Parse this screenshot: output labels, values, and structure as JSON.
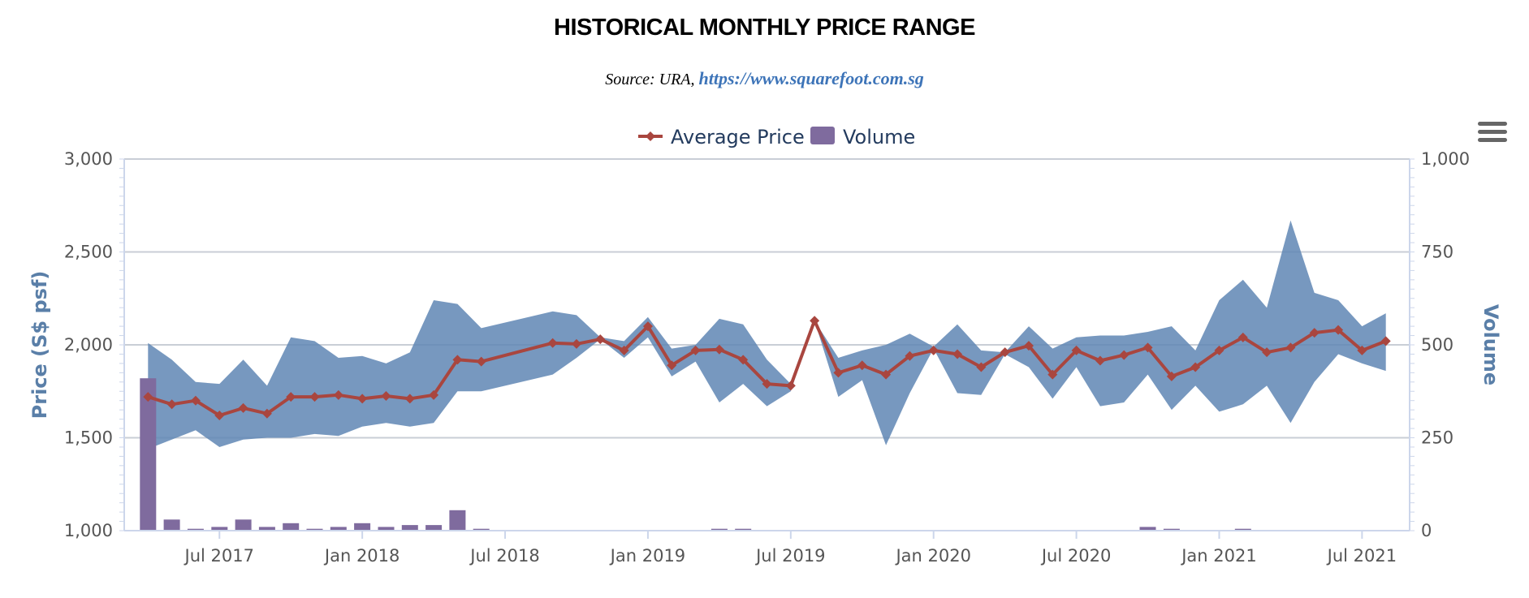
{
  "header": {
    "title": "HISTORICAL MONTHLY PRICE RANGE",
    "source_prefix": "Source: URA,",
    "source_link": "https://www.squarefoot.com.sg"
  },
  "colors": {
    "band": "#5f86b4",
    "avg_line": "#a9463f",
    "volume": "#7f6b9e",
    "grid": "#c9ced6",
    "axis_title": "#5a7fa8"
  },
  "menu": {
    "icon": "hamburger-menu-icon"
  },
  "chart_data": {
    "type": "line",
    "xlabel": "",
    "ylabel": "Price (S$ psf)",
    "y2label": "Volume",
    "ylim": [
      1000,
      3000
    ],
    "y2lim": [
      0,
      1000
    ],
    "yticks": [
      "1,000",
      "1,500",
      "2,000",
      "2,500",
      "3,000"
    ],
    "y2ticks": [
      "0",
      "250",
      "500",
      "750",
      "1,000"
    ],
    "grid": true,
    "legend_position": "top-center",
    "x_range": [
      "2017-03",
      "2021-09"
    ],
    "xticks": [
      {
        "label": "Jul 2017",
        "date": "2017-07"
      },
      {
        "label": "Jan 2018",
        "date": "2018-01"
      },
      {
        "label": "Jul 2018",
        "date": "2018-07"
      },
      {
        "label": "Jan 2019",
        "date": "2019-01"
      },
      {
        "label": "Jul 2019",
        "date": "2019-07"
      },
      {
        "label": "Jan 2020",
        "date": "2020-01"
      },
      {
        "label": "Jul 2020",
        "date": "2020-07"
      },
      {
        "label": "Jan 2021",
        "date": "2021-01"
      },
      {
        "label": "Jul 2021",
        "date": "2021-07"
      }
    ],
    "series": [
      {
        "name": "Average Price",
        "type": "line",
        "points": [
          {
            "x": "2017-04",
            "y": 1720
          },
          {
            "x": "2017-05",
            "y": 1680
          },
          {
            "x": "2017-06",
            "y": 1700
          },
          {
            "x": "2017-07",
            "y": 1620
          },
          {
            "x": "2017-08",
            "y": 1660
          },
          {
            "x": "2017-09",
            "y": 1630
          },
          {
            "x": "2017-10",
            "y": 1720
          },
          {
            "x": "2017-11",
            "y": 1720
          },
          {
            "x": "2017-12",
            "y": 1730
          },
          {
            "x": "2018-01",
            "y": 1710
          },
          {
            "x": "2018-02",
            "y": 1725
          },
          {
            "x": "2018-03",
            "y": 1710
          },
          {
            "x": "2018-04",
            "y": 1730
          },
          {
            "x": "2018-05",
            "y": 1920
          },
          {
            "x": "2018-06",
            "y": 1910
          },
          {
            "x": "2018-09",
            "y": 2010
          },
          {
            "x": "2018-10",
            "y": 2005
          },
          {
            "x": "2018-11",
            "y": 2030
          },
          {
            "x": "2018-12",
            "y": 1970
          },
          {
            "x": "2019-01",
            "y": 2100
          },
          {
            "x": "2019-02",
            "y": 1890
          },
          {
            "x": "2019-03",
            "y": 1970
          },
          {
            "x": "2019-04",
            "y": 1975
          },
          {
            "x": "2019-05",
            "y": 1920
          },
          {
            "x": "2019-06",
            "y": 1790
          },
          {
            "x": "2019-07",
            "y": 1780
          },
          {
            "x": "2019-08",
            "y": 2130
          },
          {
            "x": "2019-09",
            "y": 1850
          },
          {
            "x": "2019-10",
            "y": 1890
          },
          {
            "x": "2019-11",
            "y": 1840
          },
          {
            "x": "2019-12",
            "y": 1940
          },
          {
            "x": "2020-01",
            "y": 1970
          },
          {
            "x": "2020-02",
            "y": 1950
          },
          {
            "x": "2020-03",
            "y": 1880
          },
          {
            "x": "2020-04",
            "y": 1960
          },
          {
            "x": "2020-05",
            "y": 1995
          },
          {
            "x": "2020-06",
            "y": 1840
          },
          {
            "x": "2020-07",
            "y": 1970
          },
          {
            "x": "2020-08",
            "y": 1915
          },
          {
            "x": "2020-09",
            "y": 1945
          },
          {
            "x": "2020-10",
            "y": 1985
          },
          {
            "x": "2020-11",
            "y": 1830
          },
          {
            "x": "2020-12",
            "y": 1880
          },
          {
            "x": "2021-01",
            "y": 1970
          },
          {
            "x": "2021-02",
            "y": 2040
          },
          {
            "x": "2021-03",
            "y": 1960
          },
          {
            "x": "2021-04",
            "y": 1985
          },
          {
            "x": "2021-05",
            "y": 2065
          },
          {
            "x": "2021-06",
            "y": 2080
          },
          {
            "x": "2021-07",
            "y": 1970
          },
          {
            "x": "2021-08",
            "y": 2020
          }
        ]
      },
      {
        "name": "Price Range",
        "type": "arearange",
        "points": [
          {
            "x": "2017-04",
            "low": 1440,
            "high": 2010
          },
          {
            "x": "2017-05",
            "low": 1490,
            "high": 1920
          },
          {
            "x": "2017-06",
            "low": 1540,
            "high": 1800
          },
          {
            "x": "2017-07",
            "low": 1450,
            "high": 1790
          },
          {
            "x": "2017-08",
            "low": 1490,
            "high": 1920
          },
          {
            "x": "2017-09",
            "low": 1500,
            "high": 1780
          },
          {
            "x": "2017-10",
            "low": 1500,
            "high": 2040
          },
          {
            "x": "2017-11",
            "low": 1520,
            "high": 2020
          },
          {
            "x": "2017-12",
            "low": 1510,
            "high": 1930
          },
          {
            "x": "2018-01",
            "low": 1560,
            "high": 1940
          },
          {
            "x": "2018-02",
            "low": 1580,
            "high": 1900
          },
          {
            "x": "2018-03",
            "low": 1560,
            "high": 1960
          },
          {
            "x": "2018-04",
            "low": 1580,
            "high": 2240
          },
          {
            "x": "2018-05",
            "low": 1750,
            "high": 2220
          },
          {
            "x": "2018-06",
            "low": 1750,
            "high": 2090
          },
          {
            "x": "2018-09",
            "low": 1840,
            "high": 2180
          },
          {
            "x": "2018-10",
            "low": 1930,
            "high": 2160
          },
          {
            "x": "2018-11",
            "low": 2030,
            "high": 2040
          },
          {
            "x": "2018-12",
            "low": 1930,
            "high": 2020
          },
          {
            "x": "2019-01",
            "low": 2040,
            "high": 2150
          },
          {
            "x": "2019-02",
            "low": 1830,
            "high": 1980
          },
          {
            "x": "2019-03",
            "low": 1910,
            "high": 2000
          },
          {
            "x": "2019-04",
            "low": 1690,
            "high": 2140
          },
          {
            "x": "2019-05",
            "low": 1790,
            "high": 2110
          },
          {
            "x": "2019-06",
            "low": 1670,
            "high": 1920
          },
          {
            "x": "2019-07",
            "low": 1750,
            "high": 1790
          },
          {
            "x": "2019-08",
            "low": 2130,
            "high": 2130
          },
          {
            "x": "2019-09",
            "low": 1720,
            "high": 1930
          },
          {
            "x": "2019-10",
            "low": 1810,
            "high": 1970
          },
          {
            "x": "2019-11",
            "low": 1460,
            "high": 2000
          },
          {
            "x": "2019-12",
            "low": 1740,
            "high": 2060
          },
          {
            "x": "2020-01",
            "low": 1980,
            "high": 1990
          },
          {
            "x": "2020-02",
            "low": 1740,
            "high": 2110
          },
          {
            "x": "2020-03",
            "low": 1730,
            "high": 1970
          },
          {
            "x": "2020-04",
            "low": 1950,
            "high": 1960
          },
          {
            "x": "2020-05",
            "low": 1880,
            "high": 2100
          },
          {
            "x": "2020-06",
            "low": 1710,
            "high": 1980
          },
          {
            "x": "2020-07",
            "low": 1880,
            "high": 2040
          },
          {
            "x": "2020-08",
            "low": 1670,
            "high": 2050
          },
          {
            "x": "2020-09",
            "low": 1690,
            "high": 2050
          },
          {
            "x": "2020-10",
            "low": 1840,
            "high": 2070
          },
          {
            "x": "2020-11",
            "low": 1650,
            "high": 2100
          },
          {
            "x": "2020-12",
            "low": 1780,
            "high": 1970
          },
          {
            "x": "2021-01",
            "low": 1640,
            "high": 2240
          },
          {
            "x": "2021-02",
            "low": 1680,
            "high": 2350
          },
          {
            "x": "2021-03",
            "low": 1780,
            "high": 2200
          },
          {
            "x": "2021-04",
            "low": 1580,
            "high": 2670
          },
          {
            "x": "2021-05",
            "low": 1800,
            "high": 2280
          },
          {
            "x": "2021-06",
            "low": 1950,
            "high": 2240
          },
          {
            "x": "2021-07",
            "low": 1900,
            "high": 2100
          },
          {
            "x": "2021-08",
            "low": 1860,
            "high": 2170
          }
        ]
      },
      {
        "name": "Volume",
        "type": "column",
        "axis": "right",
        "points": [
          {
            "x": "2017-04",
            "y": 410
          },
          {
            "x": "2017-05",
            "y": 30
          },
          {
            "x": "2017-06",
            "y": 5
          },
          {
            "x": "2017-07",
            "y": 10
          },
          {
            "x": "2017-08",
            "y": 30
          },
          {
            "x": "2017-09",
            "y": 10
          },
          {
            "x": "2017-10",
            "y": 20
          },
          {
            "x": "2017-11",
            "y": 5
          },
          {
            "x": "2017-12",
            "y": 10
          },
          {
            "x": "2018-01",
            "y": 20
          },
          {
            "x": "2018-02",
            "y": 10
          },
          {
            "x": "2018-03",
            "y": 15
          },
          {
            "x": "2018-04",
            "y": 15
          },
          {
            "x": "2018-05",
            "y": 55
          },
          {
            "x": "2018-06",
            "y": 5
          },
          {
            "x": "2019-04",
            "y": 5
          },
          {
            "x": "2019-05",
            "y": 5
          },
          {
            "x": "2020-10",
            "y": 10
          },
          {
            "x": "2020-11",
            "y": 5
          },
          {
            "x": "2021-02",
            "y": 5
          }
        ]
      }
    ],
    "legend": [
      {
        "label": "Average Price",
        "series": "Average Price"
      },
      {
        "label": "Volume",
        "series": "Volume"
      }
    ]
  }
}
